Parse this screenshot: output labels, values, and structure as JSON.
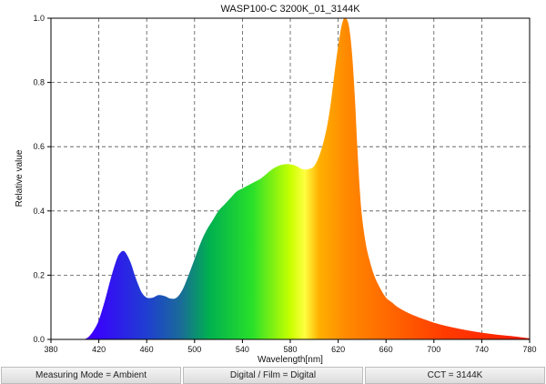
{
  "chart_data": {
    "type": "area",
    "title": "WASP100-C 3200K_01_3144K",
    "xlabel": "Wavelength[nm]",
    "ylabel": "Relative value",
    "xlim": [
      380,
      780
    ],
    "ylim": [
      0,
      1.0
    ],
    "xticks": [
      380,
      420,
      460,
      500,
      540,
      580,
      620,
      660,
      700,
      740,
      780
    ],
    "yticks": [
      0.0,
      0.2,
      0.4,
      0.6,
      0.8,
      1.0
    ],
    "xtick_labels": [
      "380",
      "420",
      "460",
      "500",
      "540",
      "580",
      "620",
      "660",
      "700",
      "740",
      "780"
    ],
    "ytick_labels": [
      "0.0",
      "0.2",
      "0.4",
      "0.6",
      "0.8",
      "1.0"
    ],
    "grid": true,
    "fill": "visible-spectrum",
    "series": [
      {
        "x": [
          408,
          412,
          416,
          420,
          425,
          430,
          435,
          438,
          441,
          444,
          447,
          450,
          453,
          456,
          460,
          465,
          470,
          475,
          480,
          485,
          490,
          495,
          500,
          505,
          510,
          515,
          520,
          525,
          530,
          535,
          540,
          545,
          550,
          555,
          560,
          565,
          570,
          575,
          580,
          585,
          590,
          595,
          600,
          605,
          610,
          614,
          618,
          622,
          625,
          628,
          630,
          632,
          634,
          636,
          638,
          640,
          643,
          646,
          650,
          655,
          660,
          665,
          670,
          680,
          690,
          700,
          710,
          720,
          730,
          740,
          750,
          760,
          770,
          780
        ],
        "y": [
          0.0,
          0.01,
          0.03,
          0.06,
          0.12,
          0.19,
          0.25,
          0.27,
          0.275,
          0.26,
          0.235,
          0.2,
          0.17,
          0.145,
          0.13,
          0.13,
          0.138,
          0.135,
          0.127,
          0.13,
          0.155,
          0.2,
          0.25,
          0.3,
          0.34,
          0.37,
          0.4,
          0.42,
          0.44,
          0.46,
          0.47,
          0.48,
          0.49,
          0.5,
          0.515,
          0.53,
          0.54,
          0.545,
          0.545,
          0.54,
          0.53,
          0.53,
          0.54,
          0.58,
          0.65,
          0.74,
          0.86,
          0.96,
          1.0,
          0.99,
          0.95,
          0.87,
          0.75,
          0.6,
          0.47,
          0.38,
          0.3,
          0.25,
          0.2,
          0.16,
          0.13,
          0.115,
          0.1,
          0.08,
          0.065,
          0.052,
          0.042,
          0.034,
          0.027,
          0.021,
          0.016,
          0.012,
          0.008,
          0.003
        ]
      }
    ]
  },
  "status_bar": {
    "measuring_mode": "Measuring Mode = Ambient",
    "digital_film": "Digital / Film = Digital",
    "cct": "CCT = 3144K"
  }
}
